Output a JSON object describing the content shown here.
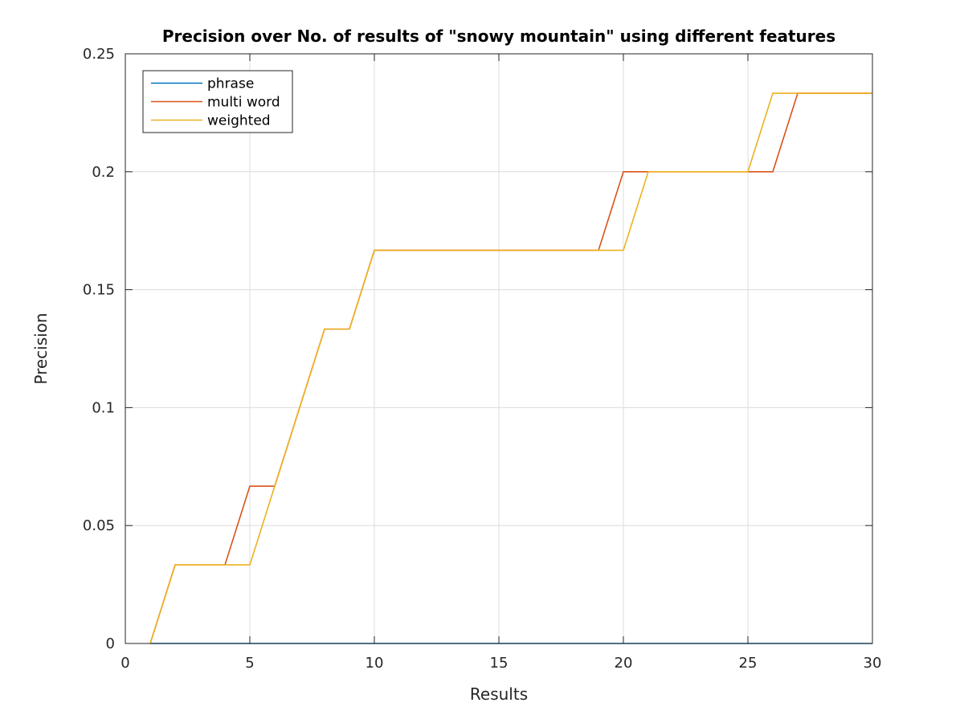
{
  "chart_data": {
    "type": "line",
    "title": "Precision over No. of results of \"snowy mountain\" using different features",
    "xlabel": "Results",
    "ylabel": "Precision",
    "xlim": [
      0,
      30
    ],
    "ylim": [
      0,
      0.25
    ],
    "xticks": [
      0,
      5,
      10,
      15,
      20,
      25,
      30
    ],
    "yticks": [
      0,
      0.05,
      0.1,
      0.15,
      0.2,
      0.25
    ],
    "xtick_labels": [
      "0",
      "5",
      "10",
      "15",
      "20",
      "25",
      "30"
    ],
    "ytick_labels": [
      "0",
      "0.05",
      "0.1",
      "0.15",
      "0.2",
      "0.25"
    ],
    "grid": true,
    "legend_position": "top-left",
    "x": [
      1,
      2,
      3,
      4,
      5,
      6,
      7,
      8,
      9,
      10,
      11,
      12,
      13,
      14,
      15,
      16,
      17,
      18,
      19,
      20,
      21,
      22,
      23,
      24,
      25,
      26,
      27,
      28,
      29,
      30
    ],
    "series": [
      {
        "name": "phrase",
        "color": "#0072bd",
        "values": [
          0,
          0,
          0,
          0,
          0,
          0,
          0,
          0,
          0,
          0,
          0,
          0,
          0,
          0,
          0,
          0,
          0,
          0,
          0,
          0,
          0,
          0,
          0,
          0,
          0,
          0,
          0,
          0,
          0,
          0
        ]
      },
      {
        "name": "multi word",
        "color": "#d95319",
        "values": [
          0,
          0.0333,
          0.0333,
          0.0333,
          0.0667,
          0.0667,
          0.1,
          0.1333,
          0.1333,
          0.1667,
          0.1667,
          0.1667,
          0.1667,
          0.1667,
          0.1667,
          0.1667,
          0.1667,
          0.1667,
          0.1667,
          0.2,
          0.2,
          0.2,
          0.2,
          0.2,
          0.2,
          0.2,
          0.2333,
          0.2333,
          0.2333,
          0.2333
        ]
      },
      {
        "name": "weighted",
        "color": "#edb120",
        "values": [
          0,
          0.0333,
          0.0333,
          0.0333,
          0.0333,
          0.0667,
          0.1,
          0.1333,
          0.1333,
          0.1667,
          0.1667,
          0.1667,
          0.1667,
          0.1667,
          0.1667,
          0.1667,
          0.1667,
          0.1667,
          0.1667,
          0.1667,
          0.2,
          0.2,
          0.2,
          0.2,
          0.2,
          0.2333,
          0.2333,
          0.2333,
          0.2333,
          0.2333
        ]
      }
    ]
  }
}
